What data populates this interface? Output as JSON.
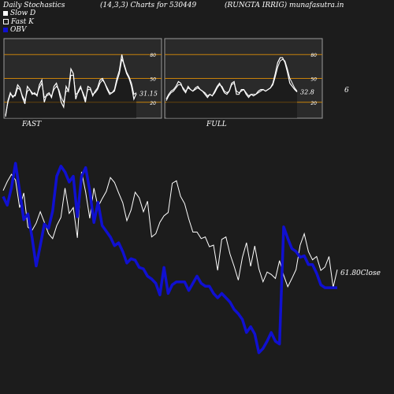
{
  "header": {
    "left": "Daily Stochastics",
    "center": "(14,3,3) Charts for 530449",
    "right": "(RUNGTA IRRIG) munafasutra.in"
  },
  "legend": [
    {
      "label": "Slow  D",
      "color": "#ffffff"
    },
    {
      "label": "Fast K",
      "color": "#ffffff"
    },
    {
      "label": "OBV",
      "color": "#1010d0"
    }
  ],
  "colors": {
    "background": "#1c1c1c",
    "panel_fill": "#2a2a2a",
    "guide_line": "#c8820a",
    "price_line": "#ffffff",
    "obv_line": "#1010d0"
  },
  "side_value": "6",
  "close_label": "61.80Close",
  "chart_data": [
    {
      "type": "line",
      "panel": "FAST",
      "label": "FAST",
      "ylim": [
        0,
        100
      ],
      "ticks": [
        "80",
        "50",
        "20"
      ],
      "guides": [
        80,
        50,
        20
      ],
      "value_label": "31.15",
      "series": [
        {
          "name": "Fast K",
          "values": [
            2,
            22,
            32,
            26,
            30,
            42,
            38,
            26,
            18,
            40,
            36,
            30,
            32,
            28,
            42,
            48,
            20,
            30,
            32,
            26,
            40,
            44,
            34,
            20,
            14,
            40,
            34,
            62,
            56,
            24,
            34,
            40,
            30,
            20,
            40,
            38,
            28,
            34,
            38,
            48,
            50,
            44,
            36,
            30,
            32,
            36,
            50,
            60,
            80,
            66,
            56,
            50,
            40,
            24,
            31
          ]
        },
        {
          "name": "Slow  D",
          "values": [
            4,
            20,
            30,
            28,
            28,
            38,
            36,
            28,
            22,
            34,
            36,
            32,
            30,
            30,
            38,
            44,
            26,
            28,
            30,
            28,
            36,
            40,
            36,
            26,
            20,
            34,
            34,
            54,
            54,
            30,
            32,
            38,
            32,
            24,
            36,
            36,
            30,
            32,
            36,
            44,
            48,
            44,
            38,
            32,
            32,
            34,
            46,
            56,
            74,
            68,
            58,
            52,
            44,
            30,
            32
          ]
        }
      ]
    },
    {
      "type": "line",
      "panel": "FULL",
      "label": "FULL",
      "ylim": [
        0,
        100
      ],
      "ticks": [
        "80",
        "50",
        "20"
      ],
      "guides": [
        80,
        50,
        20
      ],
      "value_label": "32.8",
      "series": [
        {
          "name": "Fast K",
          "values": [
            24,
            30,
            34,
            36,
            40,
            46,
            44,
            36,
            32,
            40,
            36,
            34,
            38,
            40,
            36,
            34,
            30,
            26,
            30,
            28,
            34,
            40,
            44,
            38,
            32,
            30,
            34,
            44,
            46,
            30,
            30,
            36,
            36,
            30,
            26,
            30,
            28,
            30,
            34,
            36,
            36,
            34,
            36,
            38,
            44,
            56,
            70,
            76,
            76,
            70,
            58,
            44,
            40,
            36,
            33
          ]
        },
        {
          "name": "Slow  D",
          "values": [
            22,
            28,
            32,
            34,
            38,
            42,
            42,
            38,
            34,
            38,
            36,
            34,
            36,
            38,
            36,
            34,
            32,
            28,
            30,
            28,
            32,
            38,
            42,
            40,
            34,
            32,
            34,
            42,
            44,
            34,
            32,
            34,
            36,
            32,
            28,
            30,
            30,
            30,
            32,
            34,
            36,
            34,
            36,
            38,
            42,
            52,
            64,
            72,
            74,
            72,
            62,
            50,
            44,
            38,
            34
          ]
        }
      ]
    },
    {
      "type": "line",
      "panel": "MAIN",
      "value_label": "61.80Close",
      "series": [
        {
          "name": "Close",
          "values": [
            71.5,
            72.6,
            73.5,
            72.8,
            69.4,
            71.2,
            67.0,
            66.6,
            67.5,
            68.9,
            67.6,
            66.2,
            65.6,
            67.2,
            68.2,
            71.8,
            68.7,
            69.4,
            65.7,
            73.8,
            71.3,
            68.1,
            71.8,
            69.5,
            70.5,
            71.4,
            73.1,
            72.5,
            71.2,
            70.0,
            67.8,
            69.1,
            71.3,
            70.6,
            68.9,
            70.2,
            65.8,
            66.2,
            67.6,
            68.4,
            68.8,
            72.4,
            72.7,
            70.8,
            69.9,
            68.0,
            66.4,
            66.4,
            65.6,
            65.8,
            64.6,
            64.8,
            61.7,
            65.5,
            65.8,
            63.7,
            62.2,
            60.5,
            63.3,
            65.1,
            62.2,
            64.7,
            61.9,
            60.3,
            61.5,
            61.2,
            60.7,
            62.9,
            61.1,
            59.7,
            60.7,
            61.8,
            64.8,
            66.2,
            64.0,
            63.0,
            63.4,
            61.7,
            62.1,
            63.4,
            59.6,
            61.8
          ]
        },
        {
          "name": "OBV",
          "values": [
            0.2,
            -0.4,
            0.8,
            2.5,
            0.6,
            -1.4,
            -1.0,
            -2.6,
            -4.6,
            -3.2,
            -1.7,
            -2.0,
            -0.8,
            1.6,
            2.3,
            1.9,
            1.2,
            1.6,
            -1.2,
            1.6,
            2.2,
            0.6,
            -1.6,
            -0.2,
            -1.8,
            -2.2,
            -2.6,
            -3.2,
            -3.0,
            -3.6,
            -4.4,
            -4.1,
            -4.2,
            -4.7,
            -4.8,
            -5.3,
            -5.5,
            -5.8,
            -6.6,
            -4.7,
            -6.5,
            -5.9,
            -5.7,
            -5.7,
            -5.7,
            -6.3,
            -5.8,
            -5.3,
            -5.8,
            -6.0,
            -6.0,
            -6.5,
            -6.8,
            -6.5,
            -6.8,
            -7.1,
            -7.6,
            -7.9,
            -8.3,
            -9.2,
            -8.8,
            -9.3,
            -10.6,
            -10.3,
            -9.8,
            -9.2,
            -9.8,
            -10.0,
            -1.9,
            -2.7,
            -3.4,
            -3.6,
            -4.0,
            -3.9,
            -4.5,
            -4.5,
            -5.1,
            -5.9,
            -6.1,
            -6.1,
            -6.1,
            -6.1
          ]
        }
      ]
    }
  ]
}
